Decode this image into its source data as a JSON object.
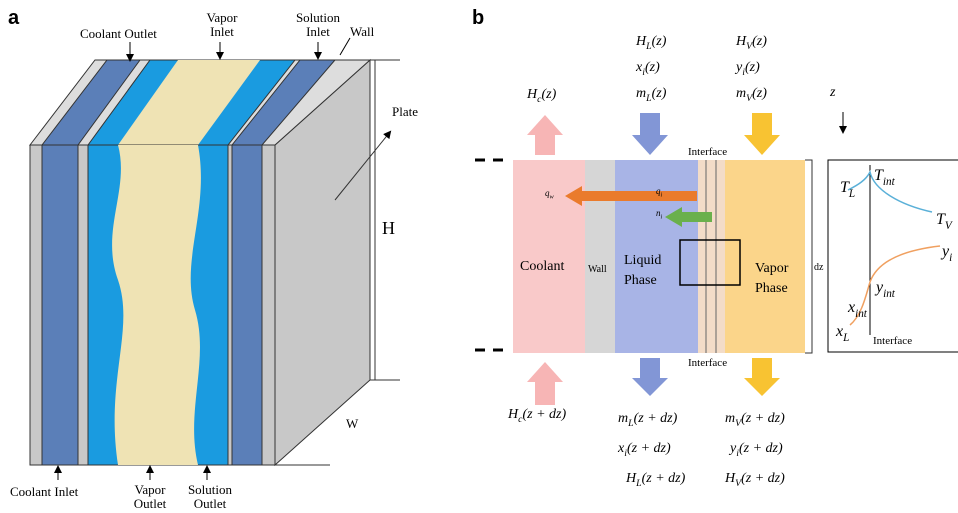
{
  "panel_a": {
    "label": "a",
    "coolant_outlet": "Coolant Outlet",
    "vapor_inlet": [
      "Vapor",
      "Inlet"
    ],
    "solution_inlet": [
      "Solution",
      "Inlet"
    ],
    "wall": "Wall",
    "plate": "Plate",
    "height": "H",
    "width": "W",
    "coolant_inlet": "Coolant Inlet",
    "vapor_outlet": [
      "Vapor",
      "Outlet"
    ],
    "solution_outlet": [
      "Solution",
      "Outlet"
    ]
  },
  "panel_b": {
    "label": "b",
    "top_liquid": [
      {
        "main": "H",
        "sub": "L",
        "arg": "(z)"
      },
      {
        "main": "x",
        "sub": "i",
        "arg": "(z)"
      },
      {
        "main": "m",
        "sub": "L",
        "arg": "(z)"
      }
    ],
    "top_vapor": [
      {
        "main": "H",
        "sub": "V",
        "arg": "(z)"
      },
      {
        "main": "y",
        "sub": "i",
        "arg": "(z)"
      },
      {
        "main": "m",
        "sub": "V",
        "arg": "(z)"
      }
    ],
    "top_coolant": {
      "main": "H",
      "sub": "c",
      "arg": "(z)"
    },
    "bottom_coolant": {
      "main": "H",
      "sub": "c",
      "arg": "(z + dz)"
    },
    "bottom_liquid": [
      {
        "main": "m",
        "sub": "L",
        "arg": "(z + dz)"
      },
      {
        "main": "x",
        "sub": "i",
        "arg": "(z + dz)"
      },
      {
        "main": "H",
        "sub": "L",
        "arg": "(z + dz)"
      }
    ],
    "bottom_vapor": [
      {
        "main": "m",
        "sub": "V",
        "arg": "(z + dz)"
      },
      {
        "main": "y",
        "sub": "i",
        "arg": "(z + dz)"
      },
      {
        "main": "H",
        "sub": "V",
        "arg": "(z + dz)"
      }
    ],
    "z_axis": "z",
    "interface_top": "Interface",
    "interface_bottom": "Interface",
    "q_wall": {
      "main": "q",
      "sub": "w"
    },
    "q_interface": {
      "main": "q",
      "sub": "i"
    },
    "n_interface": {
      "main": "n",
      "sub": "i"
    },
    "coolant": "Coolant",
    "wall": "Wall",
    "liquid_phase": [
      "Liquid",
      "Phase"
    ],
    "vapor_phase": [
      "Vapor",
      "Phase"
    ],
    "dz": "dz",
    "inset": {
      "t_l": {
        "main": "T",
        "sub": "L"
      },
      "t_int": {
        "main": "T",
        "sub": "int"
      },
      "t_v": {
        "main": "T",
        "sub": "V"
      },
      "y_i": {
        "main": "y",
        "sub": "i"
      },
      "y_int": {
        "main": "y",
        "sub": "int"
      },
      "x_int": {
        "main": "x",
        "sub": "int"
      },
      "x_l": {
        "main": "x",
        "sub": "L"
      },
      "interface": "Interface"
    }
  }
}
